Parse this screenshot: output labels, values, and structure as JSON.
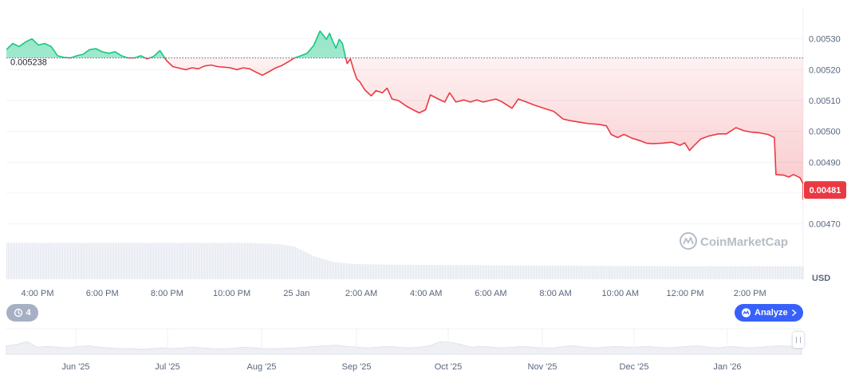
{
  "chart_data": {
    "type": "area",
    "unit": "USD",
    "baseline": {
      "value": 0.005238,
      "label": "0.005238"
    },
    "current": {
      "value": 0.00481,
      "label": "0.00481"
    },
    "ylim": [
      0.00465,
      0.0054
    ],
    "y_ticks": [
      "0.00470",
      "0.00480",
      "0.00490",
      "0.00500",
      "0.00510",
      "0.00520",
      "0.00530"
    ],
    "x_ticks": [
      "4:00 PM",
      "6:00 PM",
      "8:00 PM",
      "10:00 PM",
      "25 Jan",
      "2:00 AM",
      "4:00 AM",
      "6:00 AM",
      "8:00 AM",
      "10:00 AM",
      "12:00 PM",
      "2:00 PM"
    ],
    "x_range": [
      0,
      24.9
    ],
    "series": [
      {
        "values": [
          [
            0.0,
            0.005265
          ],
          [
            0.2,
            0.005285
          ],
          [
            0.4,
            0.005275
          ],
          [
            0.6,
            0.00529
          ],
          [
            0.8,
            0.0053
          ],
          [
            1.0,
            0.00528
          ],
          [
            1.2,
            0.005285
          ],
          [
            1.4,
            0.005275
          ],
          [
            1.6,
            0.005245
          ],
          [
            1.8,
            0.00524
          ],
          [
            2.0,
            0.005238
          ],
          [
            2.2,
            0.005245
          ],
          [
            2.4,
            0.00525
          ],
          [
            2.6,
            0.005265
          ],
          [
            2.8,
            0.005268
          ],
          [
            3.0,
            0.005258
          ],
          [
            3.2,
            0.005253
          ],
          [
            3.4,
            0.005258
          ],
          [
            3.6,
            0.005245
          ],
          [
            3.8,
            0.005238
          ],
          [
            4.0,
            0.005238
          ],
          [
            4.2,
            0.005245
          ],
          [
            4.4,
            0.005235
          ],
          [
            4.6,
            0.005243
          ],
          [
            4.8,
            0.005262
          ],
          [
            5.0,
            0.00523
          ],
          [
            5.2,
            0.00521
          ],
          [
            5.4,
            0.005205
          ],
          [
            5.6,
            0.0052
          ],
          [
            5.8,
            0.005206
          ],
          [
            6.0,
            0.005203
          ],
          [
            6.2,
            0.005212
          ],
          [
            6.4,
            0.005215
          ],
          [
            6.6,
            0.00521
          ],
          [
            6.8,
            0.005208
          ],
          [
            7.0,
            0.005206
          ],
          [
            7.2,
            0.0052
          ],
          [
            7.4,
            0.005206
          ],
          [
            7.6,
            0.005203
          ],
          [
            7.8,
            0.005192
          ],
          [
            8.0,
            0.005182
          ],
          [
            8.2,
            0.005193
          ],
          [
            8.4,
            0.005205
          ],
          [
            8.6,
            0.005213
          ],
          [
            8.8,
            0.005225
          ],
          [
            9.0,
            0.005238
          ],
          [
            9.2,
            0.005245
          ],
          [
            9.4,
            0.005253
          ],
          [
            9.6,
            0.005278
          ],
          [
            9.8,
            0.005325
          ],
          [
            9.92,
            0.00531
          ],
          [
            10.0,
            0.005298
          ],
          [
            10.1,
            0.005318
          ],
          [
            10.2,
            0.005292
          ],
          [
            10.3,
            0.00527
          ],
          [
            10.4,
            0.005298
          ],
          [
            10.5,
            0.005285
          ],
          [
            10.6,
            0.00524
          ],
          [
            10.65,
            0.00522
          ],
          [
            10.75,
            0.005235
          ],
          [
            10.85,
            0.0052
          ],
          [
            10.95,
            0.00517
          ],
          [
            11.05,
            0.00516
          ],
          [
            11.2,
            0.005135
          ],
          [
            11.4,
            0.005115
          ],
          [
            11.55,
            0.005132
          ],
          [
            11.75,
            0.005125
          ],
          [
            11.9,
            0.00514
          ],
          [
            12.05,
            0.005105
          ],
          [
            12.25,
            0.0051
          ],
          [
            12.5,
            0.005082
          ],
          [
            12.75,
            0.005068
          ],
          [
            12.9,
            0.00506
          ],
          [
            13.1,
            0.00507
          ],
          [
            13.25,
            0.005118
          ],
          [
            13.5,
            0.005105
          ],
          [
            13.7,
            0.005095
          ],
          [
            13.85,
            0.005125
          ],
          [
            14.05,
            0.005095
          ],
          [
            14.3,
            0.005102
          ],
          [
            14.5,
            0.005095
          ],
          [
            14.7,
            0.005102
          ],
          [
            14.9,
            0.005095
          ],
          [
            15.1,
            0.0051
          ],
          [
            15.3,
            0.005105
          ],
          [
            15.5,
            0.005095
          ],
          [
            15.8,
            0.005075
          ],
          [
            16.0,
            0.005105
          ],
          [
            16.25,
            0.005095
          ],
          [
            16.5,
            0.005085
          ],
          [
            16.8,
            0.005075
          ],
          [
            17.1,
            0.005065
          ],
          [
            17.4,
            0.00504
          ],
          [
            17.6,
            0.005035
          ],
          [
            17.9,
            0.00503
          ],
          [
            18.2,
            0.005025
          ],
          [
            18.5,
            0.005023
          ],
          [
            18.75,
            0.005018
          ],
          [
            18.9,
            0.00499
          ],
          [
            19.1,
            0.00498
          ],
          [
            19.3,
            0.00499
          ],
          [
            19.55,
            0.004978
          ],
          [
            19.8,
            0.00497
          ],
          [
            20.0,
            0.004962
          ],
          [
            20.2,
            0.00496
          ],
          [
            20.5,
            0.004962
          ],
          [
            20.8,
            0.004965
          ],
          [
            21.05,
            0.004955
          ],
          [
            21.2,
            0.004963
          ],
          [
            21.35,
            0.004938
          ],
          [
            21.5,
            0.004955
          ],
          [
            21.7,
            0.004975
          ],
          [
            21.95,
            0.004985
          ],
          [
            22.25,
            0.004992
          ],
          [
            22.5,
            0.004992
          ],
          [
            22.8,
            0.005012
          ],
          [
            23.05,
            0.005002
          ],
          [
            23.25,
            0.004998
          ],
          [
            23.55,
            0.004995
          ],
          [
            23.8,
            0.00499
          ],
          [
            24.0,
            0.00498
          ],
          [
            24.05,
            0.00486
          ],
          [
            24.3,
            0.004858
          ],
          [
            24.45,
            0.004852
          ],
          [
            24.6,
            0.00486
          ],
          [
            24.8,
            0.00485
          ],
          [
            24.9,
            0.00483
          ],
          [
            25.1,
            0.004795
          ],
          [
            25.3,
            0.004805
          ],
          [
            25.5,
            0.00479
          ],
          [
            25.65,
            0.00478
          ],
          [
            25.8,
            0.00481
          ]
        ]
      }
    ],
    "volume_level_profile": [
      [
        0.0,
        0.95
      ],
      [
        7.5,
        0.95
      ],
      [
        8.5,
        0.92
      ],
      [
        9.0,
        0.85
      ],
      [
        9.6,
        0.6
      ],
      [
        10.2,
        0.45
      ],
      [
        10.8,
        0.4
      ],
      [
        12.0,
        0.38
      ],
      [
        16.0,
        0.36
      ],
      [
        21.0,
        0.34
      ],
      [
        24.9,
        0.34
      ]
    ],
    "navigator": {
      "labels": [
        "Jun '25",
        "Jul '25",
        "Aug '25",
        "Sep '25",
        "Oct '25",
        "Nov '25",
        "Dec '25",
        "Jan '26"
      ],
      "levels": [
        0.6,
        0.7,
        0.9,
        0.5,
        0.55,
        0.5,
        0.45,
        0.55,
        0.6,
        0.5,
        0.45,
        0.4,
        0.4,
        0.35,
        0.4,
        0.45,
        0.4,
        0.45,
        0.5,
        0.45,
        0.4,
        0.38,
        0.42,
        0.5,
        0.45,
        0.4,
        0.38,
        0.42,
        0.45,
        0.5,
        0.55,
        0.6,
        0.65,
        0.55,
        0.5,
        0.45,
        0.5,
        0.55,
        0.5,
        0.45,
        0.5,
        0.6,
        0.9,
        0.85,
        0.7,
        0.5,
        0.55,
        0.5,
        0.45,
        0.5,
        0.55,
        0.5,
        0.45,
        0.45,
        0.55,
        0.6,
        0.5,
        0.45,
        0.5,
        0.55,
        0.5,
        0.5,
        0.55,
        0.5,
        0.45,
        0.5,
        0.55,
        0.6,
        0.5,
        0.45,
        0.55,
        0.5,
        0.45,
        0.5,
        0.55,
        0.6,
        0.55,
        0.5
      ]
    },
    "colors": {
      "up_line": "#16c784",
      "up_fill": "#16c784",
      "down_line": "#ea3943",
      "down_fill": "#ea3943",
      "current_badge": "#ea3943",
      "grid": "#eff2f5",
      "volume": "#cfd6e4",
      "watermark": "#b6bdc8"
    },
    "watermark": "CoinMarketCap"
  },
  "controls": {
    "events_count": "4",
    "events_icon": "history-icon",
    "analyze_label": "Analyze",
    "analyze_icon": "cmc-logo-icon"
  }
}
